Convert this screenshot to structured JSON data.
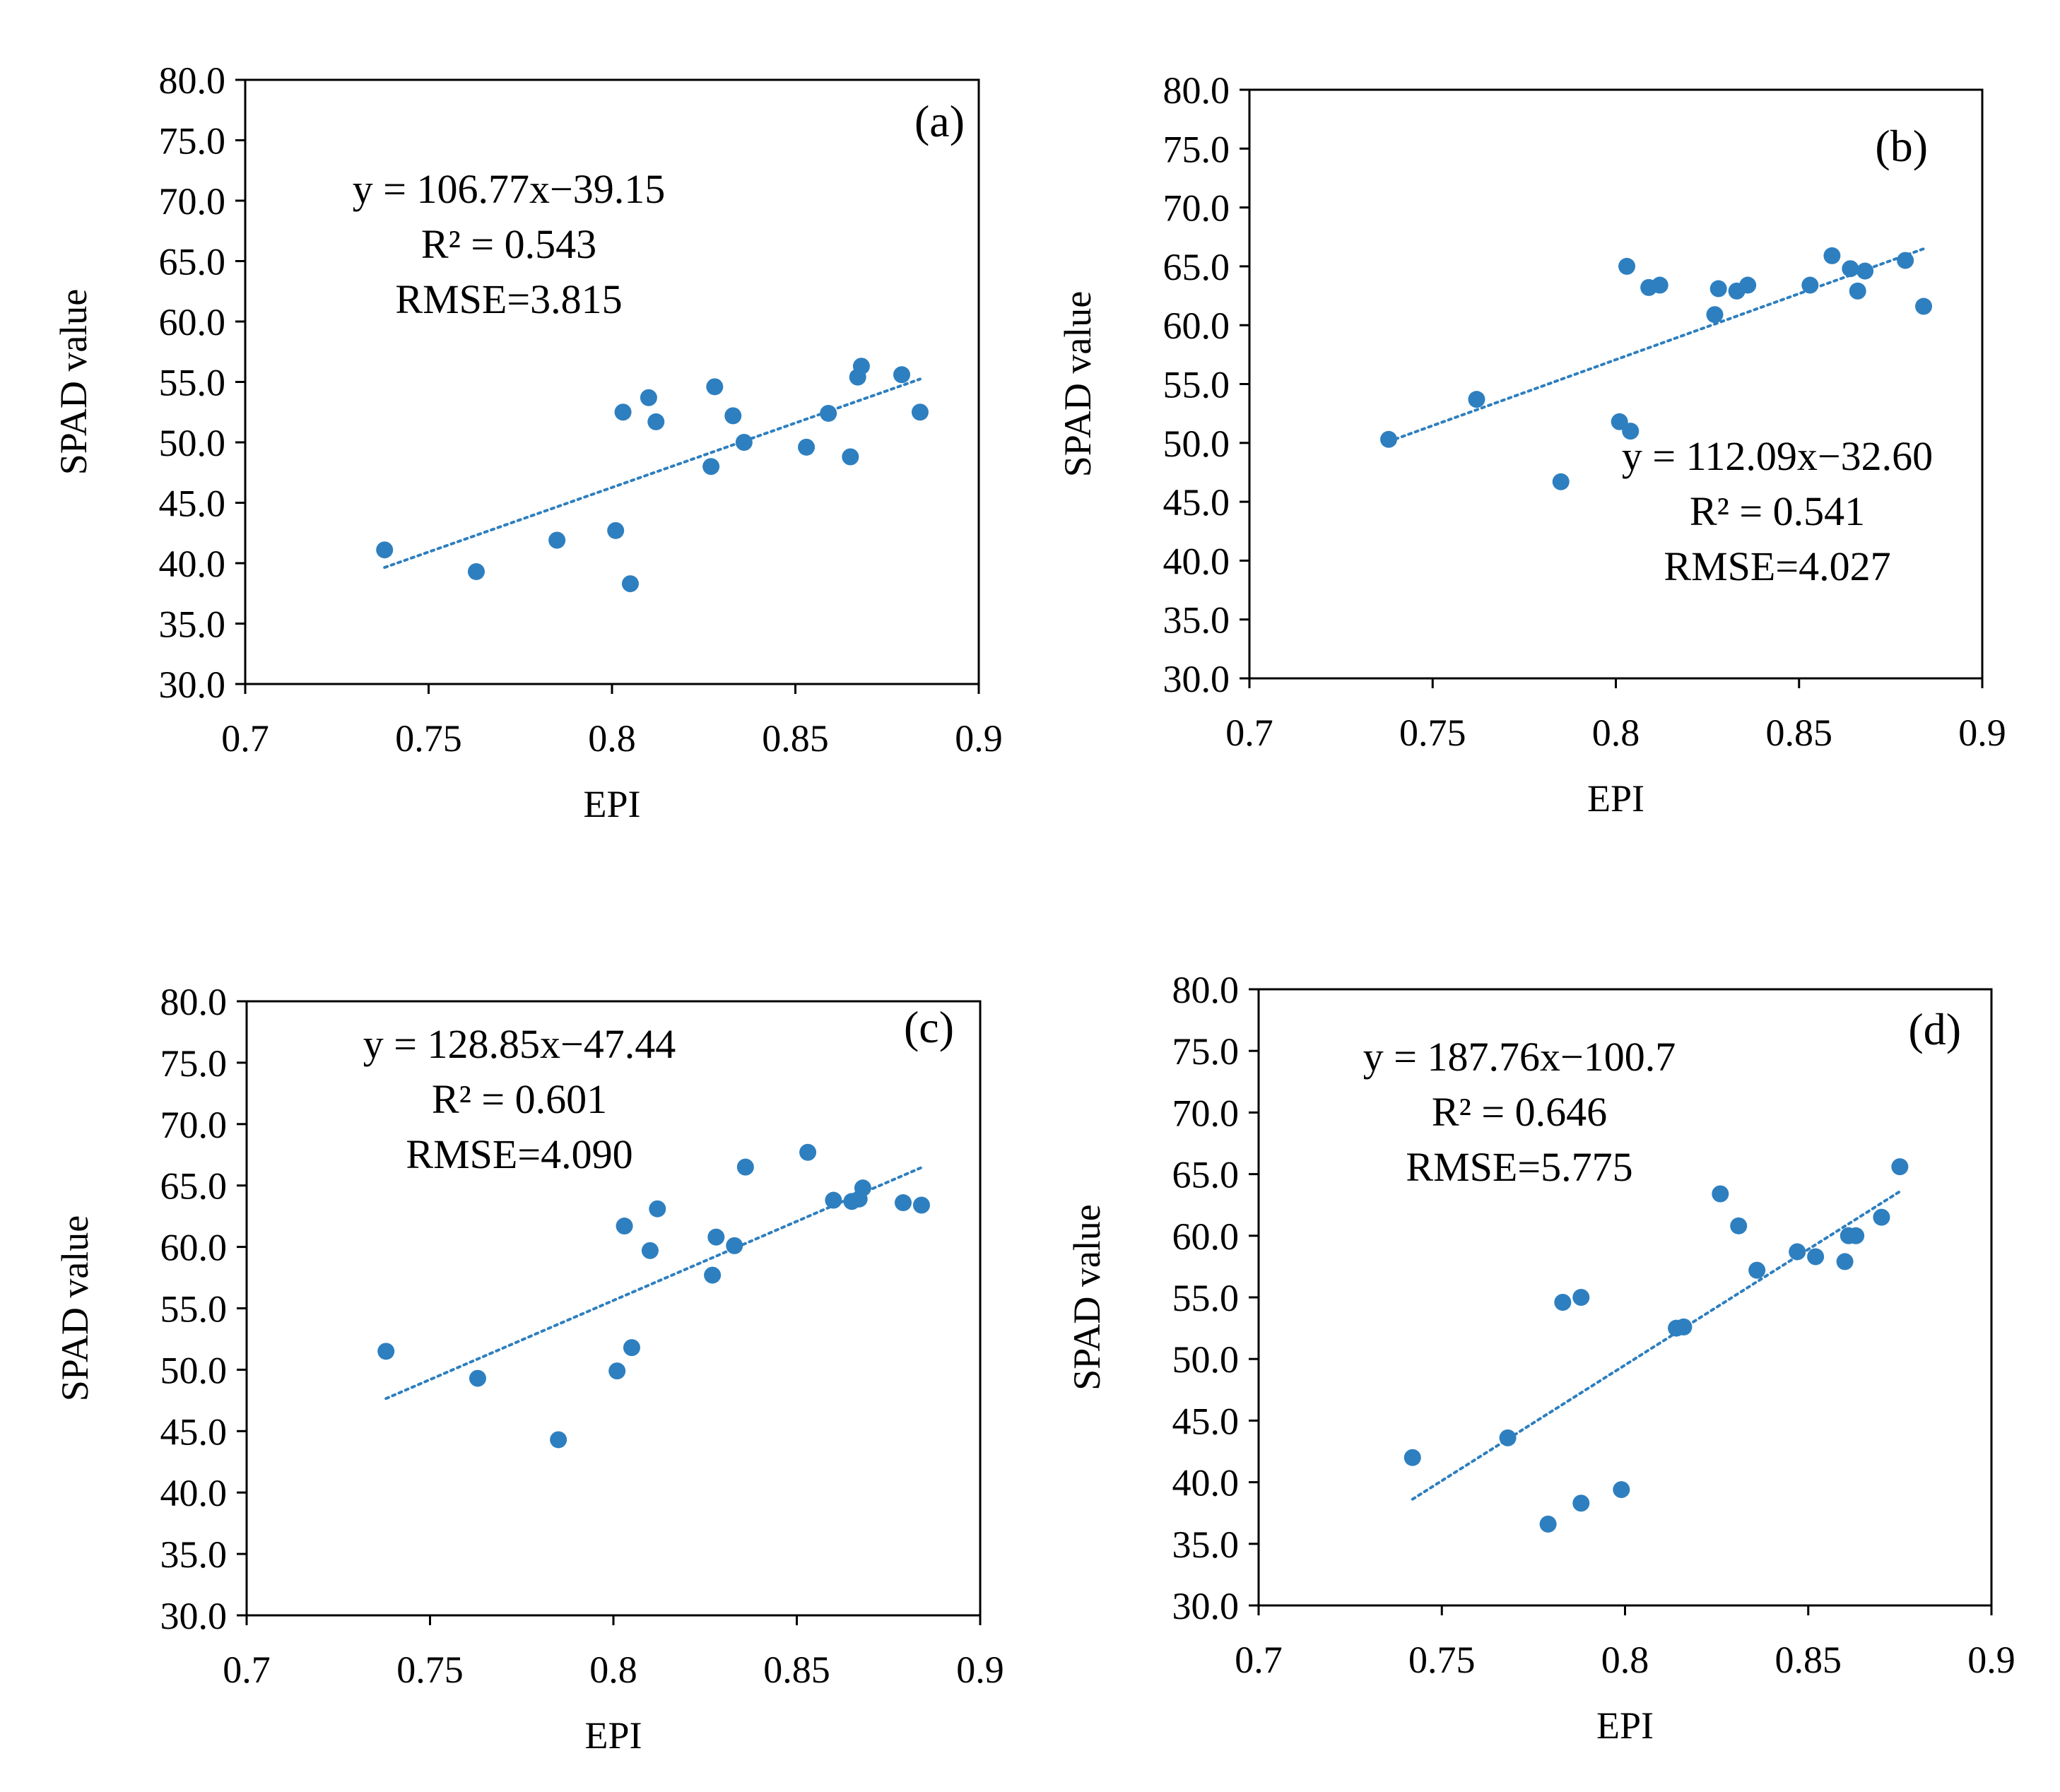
{
  "chart_data": [
    {
      "type": "scatter",
      "panel_label": "(a)",
      "xlabel": "EPI",
      "ylabel": "SPAD value",
      "xlim": [
        0.7,
        0.9
      ],
      "ylim": [
        30.0,
        80.0
      ],
      "xticks": [
        "0.7",
        "0.75",
        "0.8",
        "0.85",
        "0.9"
      ],
      "yticks": [
        "30.0",
        "35.0",
        "40.0",
        "45.0",
        "50.0",
        "55.0",
        "60.0",
        "65.0",
        "70.0",
        "75.0",
        "80.0"
      ],
      "equation": "y = 106.77x−39.15",
      "r2": "R² = 0.543",
      "rmse": "RMSE=3.815",
      "trend": {
        "slope": 106.77,
        "intercept": -39.15,
        "x_from": 0.738,
        "x_to": 0.884
      },
      "points": [
        [
          0.738,
          41.1
        ],
        [
          0.763,
          39.3
        ],
        [
          0.785,
          41.9
        ],
        [
          0.801,
          42.7
        ],
        [
          0.805,
          38.3
        ],
        [
          0.803,
          52.5
        ],
        [
          0.81,
          53.7
        ],
        [
          0.812,
          51.7
        ],
        [
          0.828,
          54.6
        ],
        [
          0.833,
          52.2
        ],
        [
          0.827,
          48.0
        ],
        [
          0.836,
          50.0
        ],
        [
          0.853,
          49.6
        ],
        [
          0.859,
          52.4
        ],
        [
          0.865,
          48.8
        ],
        [
          0.867,
          55.4
        ],
        [
          0.868,
          56.3
        ],
        [
          0.879,
          55.6
        ],
        [
          0.884,
          52.5
        ]
      ],
      "color": "#2e7fbf"
    },
    {
      "type": "scatter",
      "panel_label": "(b)",
      "xlabel": "EPI",
      "ylabel": "SPAD value",
      "xlim": [
        0.7,
        0.9
      ],
      "ylim": [
        30.0,
        80.0
      ],
      "xticks": [
        "0.7",
        "0.75",
        "0.8",
        "0.85",
        "0.9"
      ],
      "yticks": [
        "30.0",
        "35.0",
        "40.0",
        "45.0",
        "50.0",
        "55.0",
        "60.0",
        "65.0",
        "70.0",
        "75.0",
        "80.0"
      ],
      "equation": "y = 112.09x−32.60",
      "r2": "R² = 0.541",
      "rmse": "RMSE=4.027",
      "trend": {
        "slope": 112.09,
        "intercept": -32.6,
        "x_from": 0.738,
        "x_to": 0.884
      },
      "points": [
        [
          0.738,
          50.3
        ],
        [
          0.762,
          53.7
        ],
        [
          0.785,
          46.7
        ],
        [
          0.801,
          51.8
        ],
        [
          0.804,
          51.0
        ],
        [
          0.803,
          65.0
        ],
        [
          0.809,
          63.2
        ],
        [
          0.812,
          63.4
        ],
        [
          0.827,
          60.9
        ],
        [
          0.828,
          63.1
        ],
        [
          0.833,
          62.9
        ],
        [
          0.836,
          63.4
        ],
        [
          0.853,
          63.4
        ],
        [
          0.859,
          65.9
        ],
        [
          0.864,
          64.8
        ],
        [
          0.866,
          62.9
        ],
        [
          0.868,
          64.6
        ],
        [
          0.879,
          65.5
        ],
        [
          0.884,
          61.6
        ]
      ],
      "color": "#2e7fbf"
    },
    {
      "type": "scatter",
      "panel_label": "(c)",
      "xlabel": "EPI",
      "ylabel": "SPAD value",
      "xlim": [
        0.7,
        0.9
      ],
      "ylim": [
        30.0,
        80.0
      ],
      "xticks": [
        "0.7",
        "0.75",
        "0.8",
        "0.85",
        "0.9"
      ],
      "yticks": [
        "30.0",
        "35.0",
        "40.0",
        "45.0",
        "50.0",
        "55.0",
        "60.0",
        "65.0",
        "70.0",
        "75.0",
        "80.0"
      ],
      "equation": "y = 128.85x−47.44",
      "r2": "R² = 0.601",
      "rmse": "RMSE=4.090",
      "trend": {
        "slope": 128.85,
        "intercept": -47.44,
        "x_from": 0.738,
        "x_to": 0.884
      },
      "points": [
        [
          0.738,
          51.5
        ],
        [
          0.763,
          49.3
        ],
        [
          0.785,
          44.3
        ],
        [
          0.801,
          49.9
        ],
        [
          0.805,
          51.8
        ],
        [
          0.803,
          61.7
        ],
        [
          0.81,
          59.7
        ],
        [
          0.812,
          63.1
        ],
        [
          0.827,
          57.7
        ],
        [
          0.828,
          60.8
        ],
        [
          0.833,
          60.1
        ],
        [
          0.836,
          66.5
        ],
        [
          0.853,
          67.7
        ],
        [
          0.86,
          63.8
        ],
        [
          0.865,
          63.7
        ],
        [
          0.867,
          63.9
        ],
        [
          0.868,
          64.8
        ],
        [
          0.879,
          63.6
        ],
        [
          0.884,
          63.4
        ]
      ],
      "color": "#2e7fbf"
    },
    {
      "type": "scatter",
      "panel_label": "(d)",
      "xlabel": "EPI",
      "ylabel": "SPAD value",
      "xlim": [
        0.7,
        0.9
      ],
      "ylim": [
        30.0,
        80.0
      ],
      "xticks": [
        "0.7",
        "0.75",
        "0.8",
        "0.85",
        "0.9"
      ],
      "yticks": [
        "30.0",
        "35.0",
        "40.0",
        "45.0",
        "50.0",
        "55.0",
        "60.0",
        "65.0",
        "70.0",
        "75.0",
        "80.0"
      ],
      "equation": "y = 187.76x−100.7",
      "r2": "R² = 0.646",
      "rmse": "RMSE=5.775",
      "trend": {
        "slope": 187.76,
        "intercept": -100.7,
        "x_from": 0.742,
        "x_to": 0.875
      },
      "points": [
        [
          0.742,
          42.0
        ],
        [
          0.768,
          43.6
        ],
        [
          0.779,
          36.6
        ],
        [
          0.783,
          54.6
        ],
        [
          0.788,
          55.0
        ],
        [
          0.788,
          38.3
        ],
        [
          0.799,
          39.4
        ],
        [
          0.814,
          52.5
        ],
        [
          0.816,
          52.6
        ],
        [
          0.826,
          63.4
        ],
        [
          0.831,
          60.8
        ],
        [
          0.836,
          57.2
        ],
        [
          0.847,
          58.7
        ],
        [
          0.852,
          58.3
        ],
        [
          0.86,
          57.9
        ],
        [
          0.861,
          60.0
        ],
        [
          0.863,
          60.0
        ],
        [
          0.87,
          61.5
        ],
        [
          0.875,
          65.6
        ]
      ],
      "color": "#2e7fbf"
    }
  ]
}
